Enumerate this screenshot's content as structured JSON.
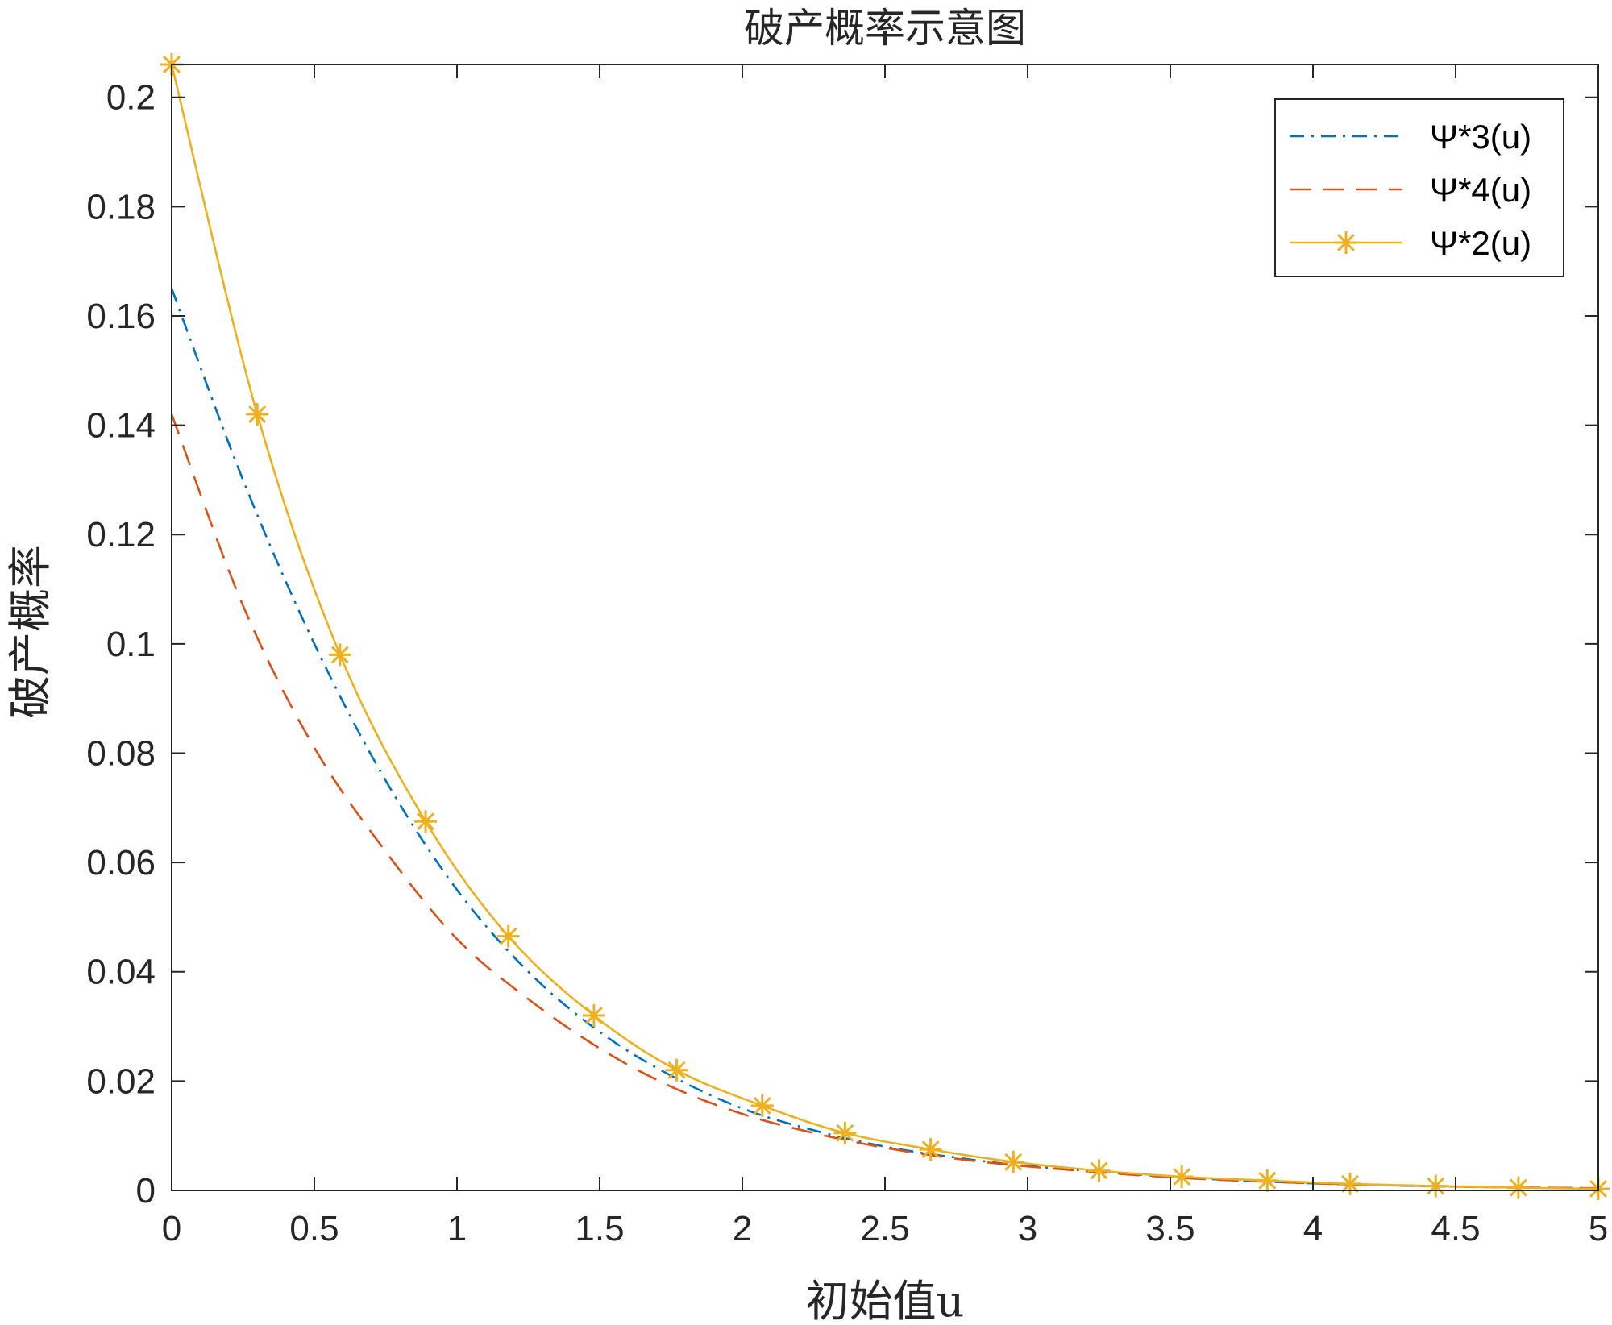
{
  "chart_data": {
    "type": "line",
    "title": "破产概率示意图",
    "xlabel": "初始值u",
    "ylabel": "破产概率",
    "xlim": [
      0,
      5
    ],
    "ylim": [
      0,
      0.206
    ],
    "grid": false,
    "legend_position": "top-right",
    "x_ticks": [
      "0",
      "0.5",
      "1",
      "1.5",
      "2",
      "2.5",
      "3",
      "3.5",
      "4",
      "4.5",
      "5"
    ],
    "y_ticks": [
      "0",
      "0.02",
      "0.04",
      "0.06",
      "0.08",
      "0.1",
      "0.12",
      "0.14",
      "0.16",
      "0.18",
      "0.2"
    ],
    "series": [
      {
        "name": "Ψ*3(u)",
        "color": "#0072BD",
        "line_style": "dash-dot",
        "marker": "none",
        "x": [
          0,
          0.25,
          0.5,
          0.75,
          1.0,
          1.25,
          1.5,
          1.75,
          2.0,
          2.25,
          2.5,
          2.75,
          3.0,
          3.5,
          4.0,
          4.5,
          5.0
        ],
        "y": [
          0.165,
          0.13,
          0.1,
          0.075,
          0.055,
          0.04,
          0.029,
          0.021,
          0.015,
          0.011,
          0.008,
          0.006,
          0.0045,
          0.0025,
          0.0013,
          0.0007,
          0.0004
        ]
      },
      {
        "name": "Ψ*4(u)",
        "color": "#D95319",
        "line_style": "dashed",
        "marker": "none",
        "x": [
          0,
          0.25,
          0.5,
          0.75,
          1.0,
          1.25,
          1.5,
          1.75,
          2.0,
          2.25,
          2.5,
          2.75,
          3.0,
          3.5,
          4.0,
          4.5,
          5.0
        ],
        "y": [
          0.142,
          0.107,
          0.081,
          0.062,
          0.046,
          0.035,
          0.026,
          0.019,
          0.014,
          0.0105,
          0.0078,
          0.0058,
          0.0044,
          0.0024,
          0.0013,
          0.0007,
          0.0004
        ]
      },
      {
        "name": "Ψ*2(u)",
        "color": "#EDB120",
        "line_style": "solid",
        "marker": "asterisk",
        "x": [
          0,
          0.3,
          0.59,
          0.89,
          1.18,
          1.48,
          1.77,
          2.07,
          2.36,
          2.66,
          2.95,
          3.25,
          3.54,
          3.84,
          4.13,
          4.43,
          4.72,
          5.0
        ],
        "y": [
          0.206,
          0.142,
          0.098,
          0.0675,
          0.0465,
          0.032,
          0.022,
          0.0155,
          0.0105,
          0.0075,
          0.0052,
          0.0036,
          0.0025,
          0.0018,
          0.0012,
          0.0008,
          0.0005,
          0.0003
        ]
      }
    ]
  }
}
